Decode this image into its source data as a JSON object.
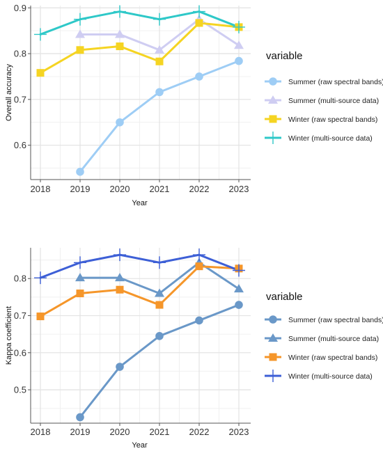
{
  "chart_data": [
    {
      "type": "line",
      "title": "",
      "xlabel": "Year",
      "ylabel": "Overall accuracy",
      "x": [
        2018,
        2019,
        2020,
        2021,
        2022,
        2023
      ],
      "x_ticks": [
        "2018",
        "2019",
        "2020",
        "2021",
        "2022",
        "2023"
      ],
      "y_ticks": [
        "0.6",
        "0.7",
        "0.8",
        "0.9"
      ],
      "ylim": [
        0.525,
        0.905
      ],
      "grid": true,
      "legend_title": "variable",
      "legend_position": "right",
      "series": [
        {
          "name": "Summer (raw spectral bands)",
          "color": "#9ecdf5",
          "marker": "circle",
          "values": [
            null,
            0.542,
            0.65,
            0.716,
            0.75,
            0.784
          ]
        },
        {
          "name": "Summer (multi-source data)",
          "color": "#cfcdf2",
          "marker": "triangle",
          "values": [
            null,
            0.842,
            0.842,
            0.808,
            0.875,
            0.818
          ]
        },
        {
          "name": "Winter (raw spectral bands)",
          "color": "#f5d422",
          "marker": "square",
          "values": [
            0.758,
            0.808,
            0.816,
            0.783,
            0.867,
            0.858
          ]
        },
        {
          "name": "Winter (multi-source data)",
          "color": "#2ec8c8",
          "marker": "cross",
          "values": [
            0.842,
            0.875,
            0.892,
            0.875,
            0.892,
            0.858
          ]
        }
      ]
    },
    {
      "type": "line",
      "title": "",
      "xlabel": "Year",
      "ylabel": "Kappa coefficient",
      "x": [
        2018,
        2019,
        2020,
        2021,
        2022,
        2023
      ],
      "x_ticks": [
        "2018",
        "2019",
        "2020",
        "2021",
        "2022",
        "2023"
      ],
      "y_ticks": [
        "0.5",
        "0.6",
        "0.7",
        "0.8"
      ],
      "ylim": [
        0.41,
        0.883
      ],
      "grid": true,
      "legend_title": "variable",
      "legend_position": "right",
      "series": [
        {
          "name": "Summer (raw spectral bands)",
          "color": "#6a98c8",
          "marker": "circle",
          "values": [
            null,
            0.426,
            0.562,
            0.645,
            0.687,
            0.729
          ]
        },
        {
          "name": "Summer (multi-source data)",
          "color": "#6a98c8",
          "marker": "triangle",
          "values": [
            null,
            0.802,
            0.802,
            0.76,
            0.843,
            0.772
          ]
        },
        {
          "name": "Winter (raw spectral bands)",
          "color": "#f5962a",
          "marker": "square",
          "values": [
            0.698,
            0.76,
            0.77,
            0.729,
            0.833,
            0.827
          ]
        },
        {
          "name": "Winter (multi-source data)",
          "color": "#3d5fd6",
          "marker": "cross",
          "values": [
            0.802,
            0.843,
            0.864,
            0.843,
            0.864,
            0.822
          ]
        }
      ]
    }
  ]
}
